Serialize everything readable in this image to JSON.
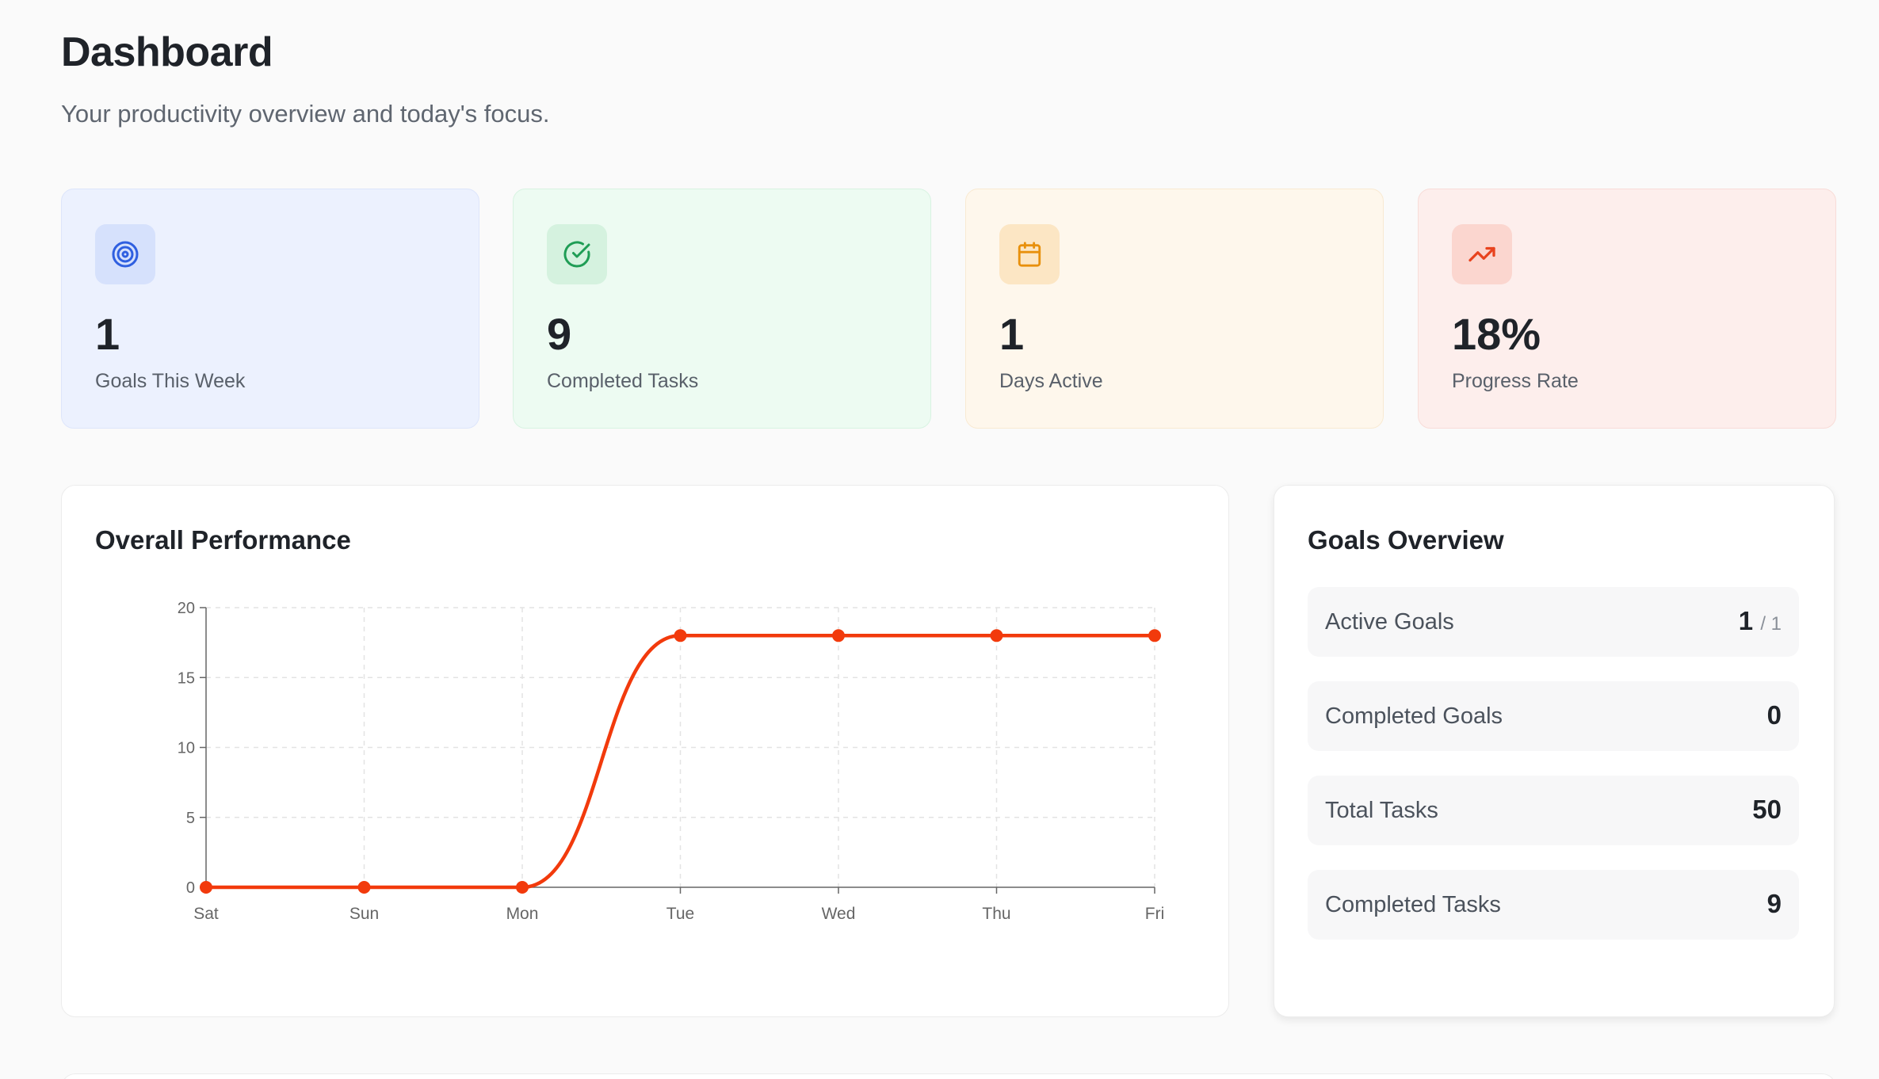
{
  "header": {
    "title": "Dashboard",
    "subtitle": "Your productivity overview and today's focus."
  },
  "stats": [
    {
      "value": "1",
      "label": "Goals This Week",
      "icon": "target-icon",
      "accent": "#2f5fe0"
    },
    {
      "value": "9",
      "label": "Completed Tasks",
      "icon": "check-circle-icon",
      "accent": "#1f9d55"
    },
    {
      "value": "1",
      "label": "Days Active",
      "icon": "calendar-icon",
      "accent": "#e8900c"
    },
    {
      "value": "18%",
      "label": "Progress Rate",
      "icon": "trending-up-icon",
      "accent": "#e8431e"
    }
  ],
  "performance": {
    "title": "Overall Performance"
  },
  "chart_data": {
    "type": "line",
    "title": "Overall Performance",
    "categories": [
      "Sat",
      "Sun",
      "Mon",
      "Tue",
      "Wed",
      "Thu",
      "Fri"
    ],
    "series": [
      {
        "values": [
          0,
          0,
          0,
          18,
          18,
          18,
          18
        ],
        "color": "#f23a0c"
      }
    ],
    "ylim": [
      0,
      20
    ],
    "yticks": [
      0,
      5,
      10,
      15,
      20
    ],
    "grid": true,
    "xlabel": "",
    "ylabel": ""
  },
  "goals_overview": {
    "title": "Goals Overview",
    "rows": [
      {
        "label": "Active Goals",
        "value": "1",
        "total": "/ 1"
      },
      {
        "label": "Completed Goals",
        "value": "0"
      },
      {
        "label": "Total Tasks",
        "value": "50"
      },
      {
        "label": "Completed Tasks",
        "value": "9"
      }
    ]
  }
}
